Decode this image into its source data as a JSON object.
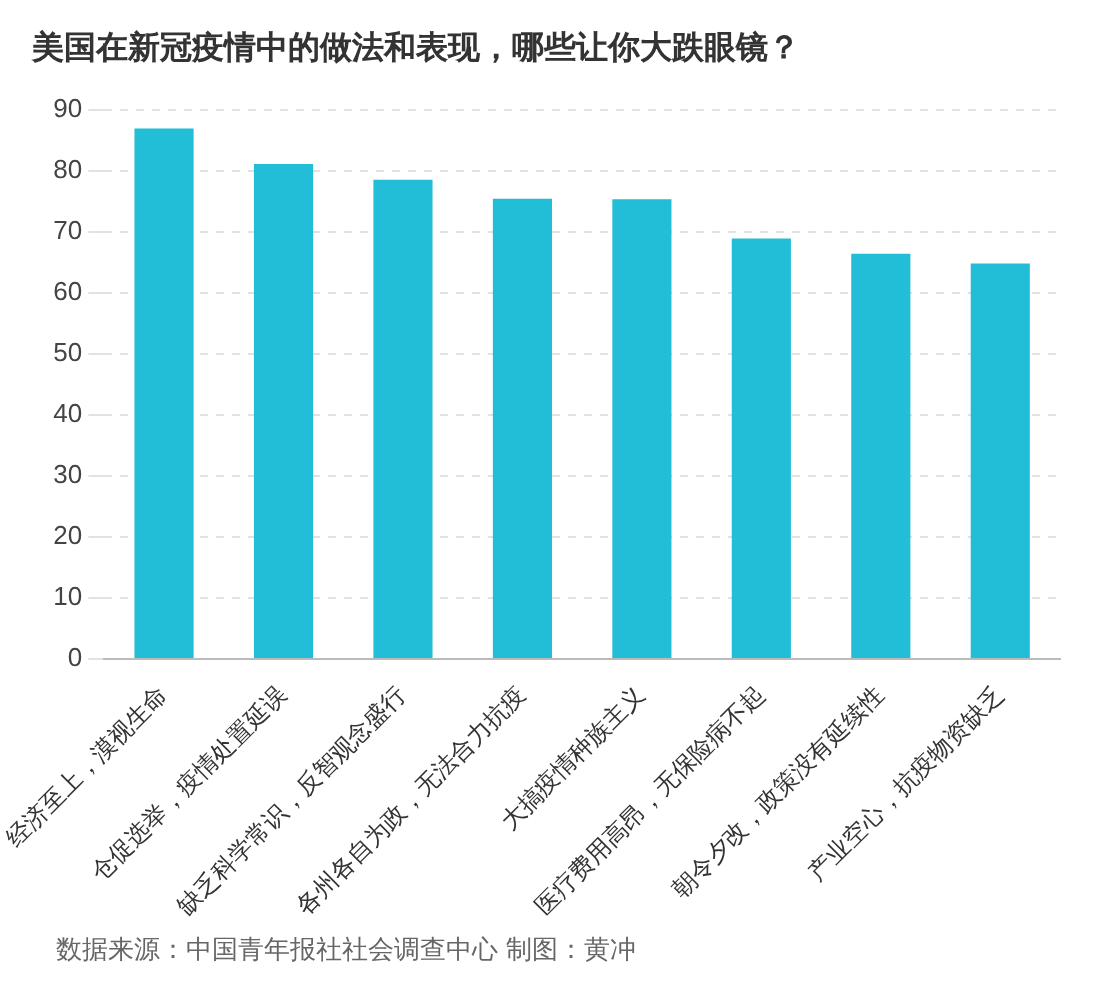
{
  "chart_data": {
    "type": "bar",
    "title": "美国在新冠疫情中的做法和表现，哪些让你大跌眼镜？",
    "categories": [
      "经济至上，漠视生命",
      "仓促选举，疫情处置延误",
      "缺乏科学常识，反智观念盛行",
      "各州各自为政，无法合力抗疫",
      "大搞疫情种族主义",
      "医疗费用高昂，无保险病不起",
      "朝令夕改，政策没有延续性",
      "产业空心，抗疫物资缺乏"
    ],
    "values": [
      86.9,
      81.1,
      78.5,
      75.4,
      75.3,
      68.9,
      66.4,
      64.8
    ],
    "color": "#22bdd6",
    "ylim": [
      0,
      90
    ],
    "yticks": [
      0,
      10,
      20,
      30,
      40,
      50,
      60,
      70,
      80,
      90
    ],
    "grid": "y",
    "legend": false,
    "annotations": [
      "数据来源：中国青年报社社会调查中心 制图：黄冲"
    ]
  }
}
